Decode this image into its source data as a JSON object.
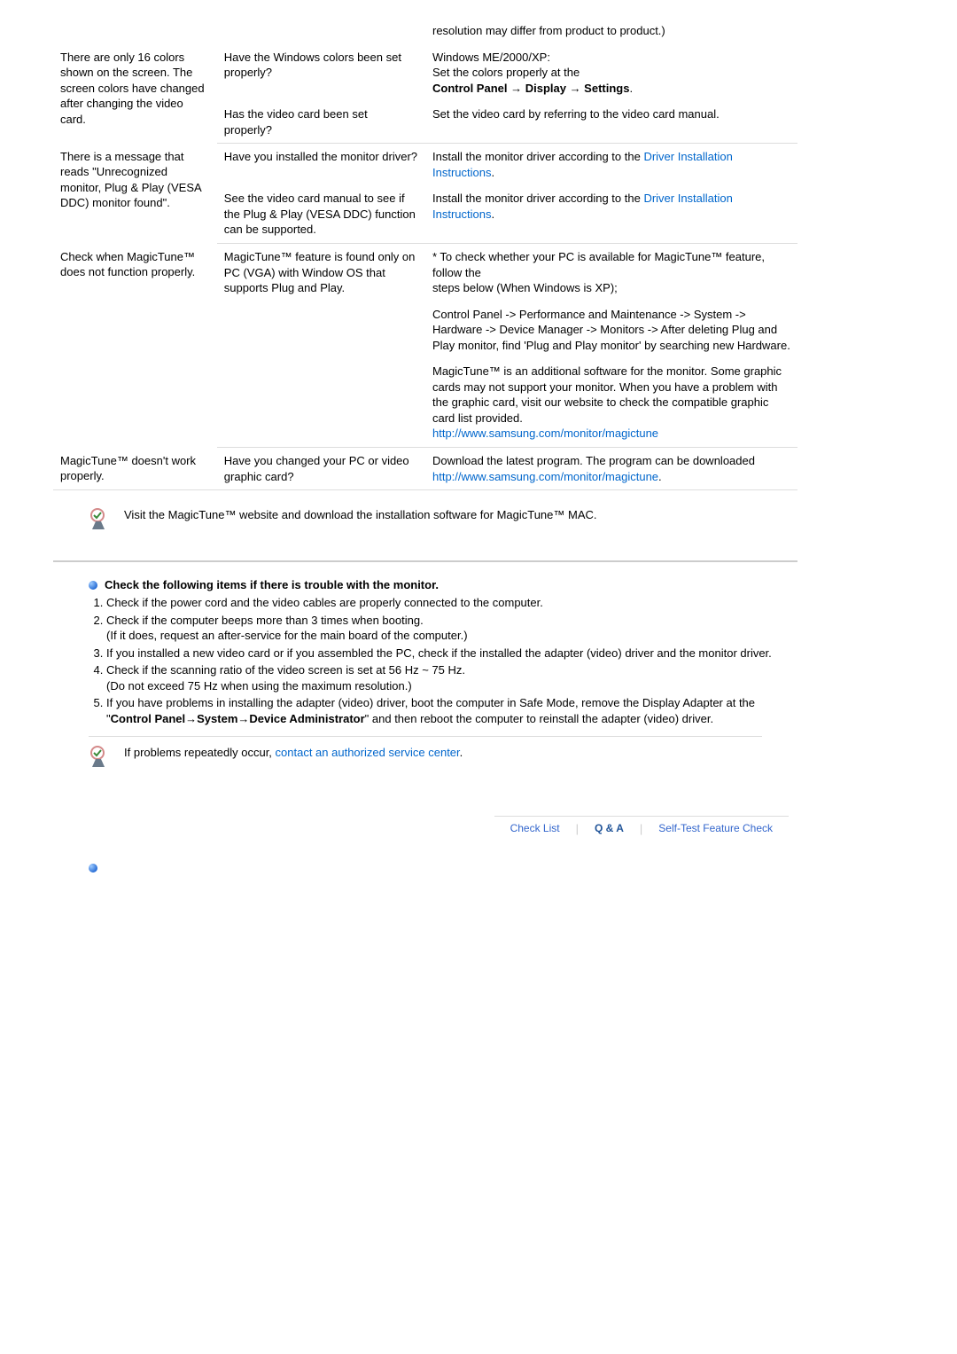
{
  "troubleshooting_rows": [
    {
      "symptom": "",
      "checks": [
        {
          "check": "",
          "solution": "resolution may differ from product to product.)"
        }
      ]
    },
    {
      "symptom": "There are only 16 colors shown on the screen. The screen colors have changed after changing the video card.",
      "checks": [
        {
          "check": "Have the Windows colors been set properly?",
          "solution_parts": [
            {
              "text": "Windows ME/2000/XP:\nSet the colors properly at the\n"
            },
            {
              "text": "Control Panel → Display → Settings",
              "bold": true
            },
            {
              "text": "."
            }
          ]
        },
        {
          "check": "Has the video card been set properly?",
          "solution": "Set the video card by referring to the video card manual."
        }
      ]
    },
    {
      "symptom": "There is a message that reads \"Unrecognized monitor, Plug & Play (VESA DDC) monitor found\".",
      "checks": [
        {
          "check": "Have you installed the monitor driver?",
          "solution_parts": [
            {
              "text": "Install the monitor driver according to the "
            },
            {
              "text": "Driver Installation Instructions",
              "link": true
            },
            {
              "text": "."
            }
          ]
        },
        {
          "check": "See the video card manual to see if the Plug & Play (VESA DDC) function can be supported.",
          "solution_parts": [
            {
              "text": "Install the monitor driver according to the "
            },
            {
              "text": "Driver Installation Instructions",
              "link": true
            },
            {
              "text": "."
            }
          ]
        }
      ]
    },
    {
      "symptom": "Check when MagicTune™ does not function properly.",
      "checks": [
        {
          "check": "MagicTune™ feature is found only on PC (VGA) with Window OS that supports Plug and Play.",
          "solution": "* To check whether your PC is available for MagicTune™ feature, follow the\n  steps below (When Windows is XP);"
        },
        {
          "check": "",
          "solution": "Control Panel -> Performance and Maintenance -> System -> Hardware -> Device Manager -> Monitors -> After deleting Plug and Play monitor, find 'Plug and Play monitor' by searching new Hardware."
        },
        {
          "check": "",
          "solution_parts": [
            {
              "text": "MagicTune™ is an additional software for the monitor. Some graphic cards may not support your monitor. When you have a problem with the graphic card, visit our website to check the compatible graphic card list provided.\n"
            },
            {
              "text": "http://www.samsung.com/monitor/magictune",
              "link": true
            }
          ]
        }
      ]
    },
    {
      "symptom": "MagicTune™ doesn't work properly.",
      "checks": [
        {
          "check": "Have you changed your PC or video graphic card?",
          "solution_parts": [
            {
              "text": "Download the latest program. The program can be downloaded\n"
            },
            {
              "text": "http://www.samsung.com/monitor/magictune",
              "link": true
            },
            {
              "text": "."
            }
          ]
        }
      ]
    }
  ],
  "mac_note": "Visit the MagicTune™ website and download the installation software for MagicTune™ MAC.",
  "check_header": "Check the following items if there is trouble with the monitor.",
  "check_items": [
    "Check if the power cord and the video cables are properly connected to the computer.",
    "Check if the computer beeps more than 3 times when booting.\n(If it does, request an after-service for the main board of the computer.)",
    "If you installed a new video card or if you assembled the PC, check if the installed the adapter (video) driver and the monitor driver.",
    "Check if the scanning ratio of the video screen is set at 56 Hz ~ 75 Hz.\n(Do not exceed 75 Hz when using the maximum resolution.)"
  ],
  "check_item5_parts": [
    {
      "text": "If you have problems in installing the adapter (video) driver, boot the computer in Safe Mode, remove the Display Adapter at the \""
    },
    {
      "text": "Control Panel→System→Device Administrator",
      "bold": true
    },
    {
      "text": "\" and then reboot the computer to reinstall the adapter (video) driver."
    }
  ],
  "repeat_note_prefix": "If problems repeatedly occur, ",
  "repeat_note_link": "contact an authorized service center",
  "repeat_note_suffix": ".",
  "tabs": {
    "checklist": "Check List",
    "qa": "Q & A",
    "selftest": "Self-Test Feature Check"
  },
  "colors": {
    "link": "#0066cc",
    "border": "#ddd",
    "tab_text": "#3366cc",
    "tab_active": "#225599"
  }
}
